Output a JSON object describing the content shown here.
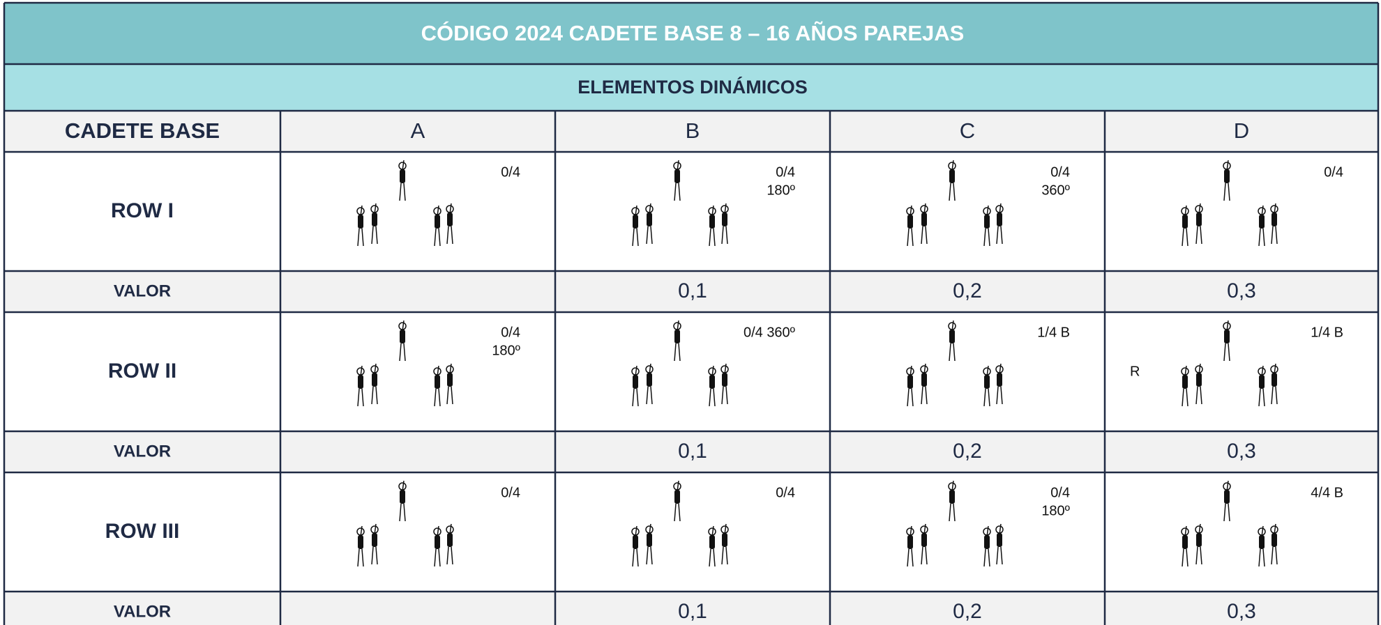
{
  "header": {
    "title": "CÓDIGO 2024 CADETE BASE  8 – 16 AÑOS  PAREJAS",
    "subtitle": "ELEMENTOS DINÁMICOS"
  },
  "table": {
    "columns": [
      "CADETE BASE",
      "A",
      "B",
      "C",
      "D"
    ],
    "rows": [
      {
        "label": "ROW I",
        "notes": [
          [
            "0/4"
          ],
          [
            "0/4",
            "180º"
          ],
          [
            "0/4",
            "360º"
          ],
          [
            "0/4"
          ]
        ],
        "valor_label": "VALOR",
        "valor": [
          null,
          "0,1",
          "0,2",
          "0,3"
        ]
      },
      {
        "label": "ROW II",
        "notes": [
          [
            "0/4",
            "180º"
          ],
          [
            "0/4  360º"
          ],
          [
            "1/4 B"
          ],
          [
            "1/4 B"
          ]
        ],
        "side_note": "R",
        "valor_label": "VALOR",
        "valor": [
          null,
          "0,1",
          "0,2",
          "0,3"
        ]
      },
      {
        "label": "ROW III",
        "notes": [
          [
            "0/4"
          ],
          [
            "0/4"
          ],
          [
            "0/4",
            "180º"
          ],
          [
            "4/4 B"
          ]
        ],
        "valor_label": "VALOR",
        "valor": [
          null,
          "0,1",
          "0,2",
          "0,3"
        ]
      }
    ]
  }
}
